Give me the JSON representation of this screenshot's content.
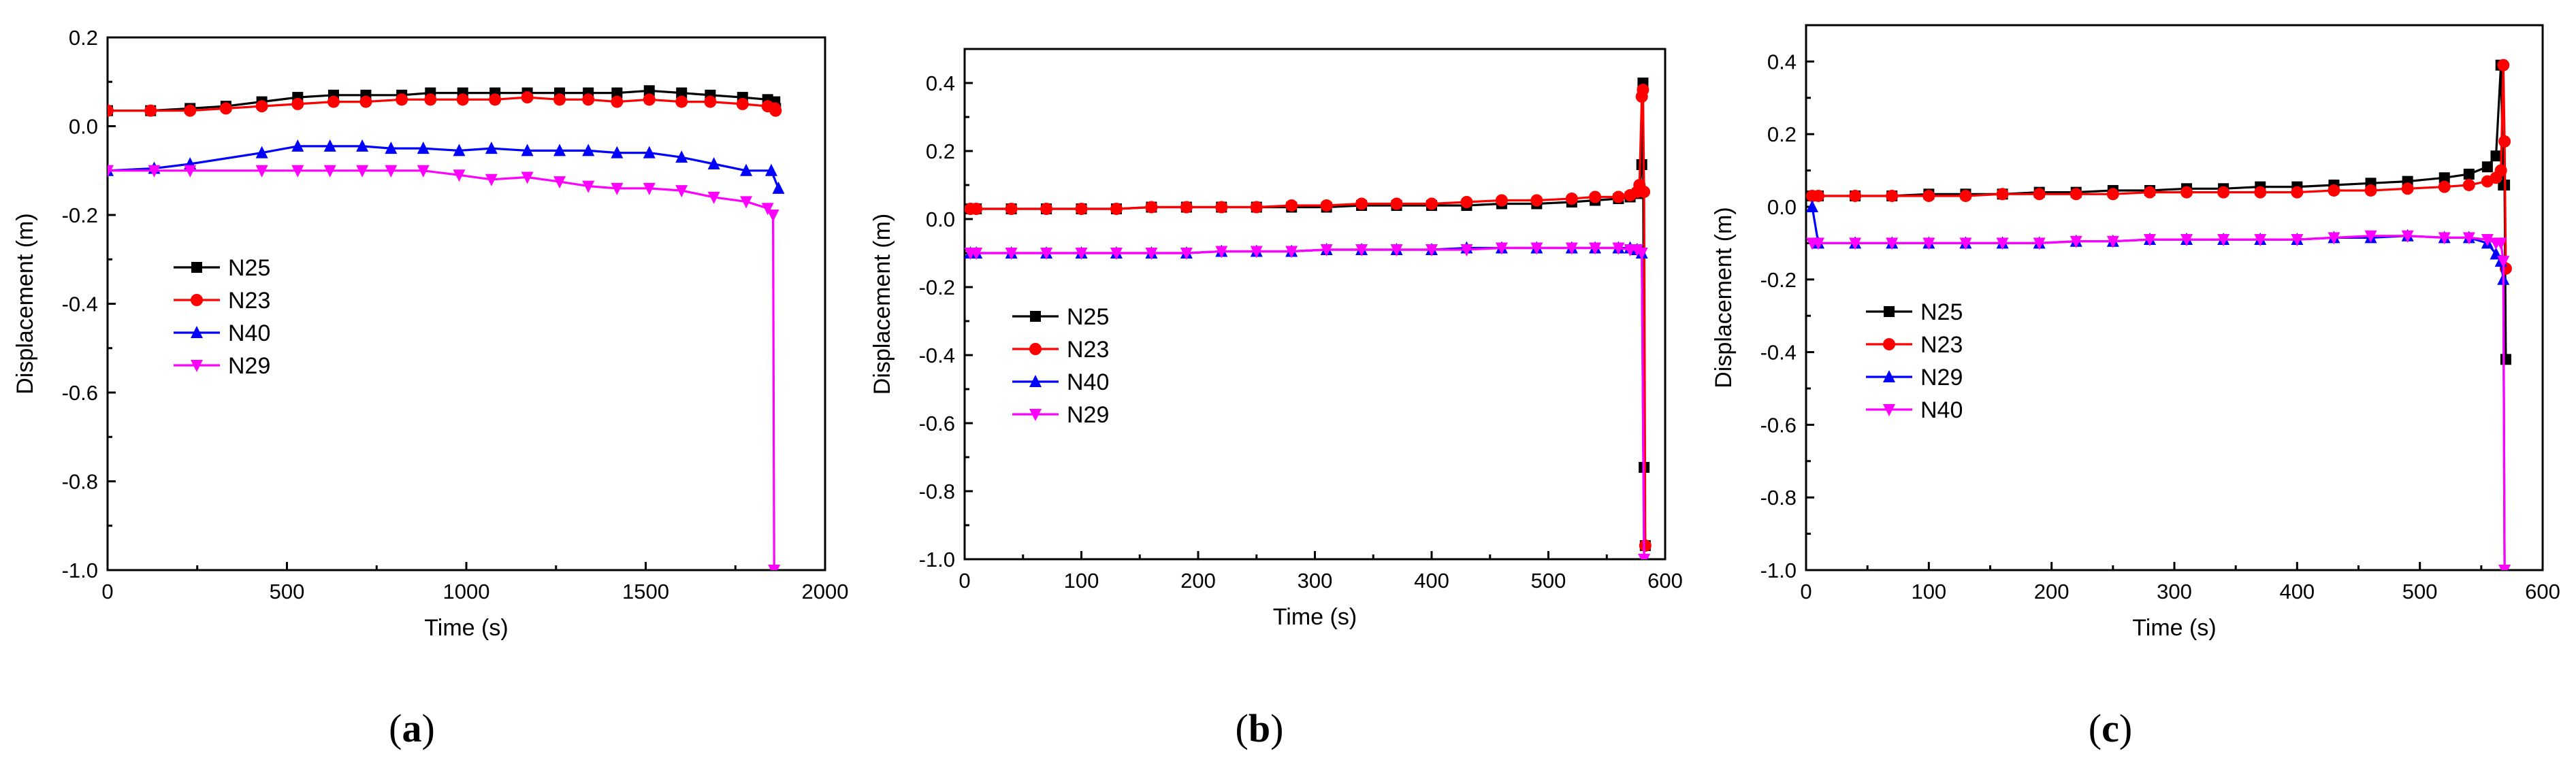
{
  "chart_data": [
    {
      "panel": "a",
      "type": "line",
      "panel_label": {
        "open": "(",
        "letter": "a",
        "close": ")"
      },
      "xlabel": "Time (s)",
      "ylabel": "Displacement (m)",
      "xlim": [
        0,
        2000
      ],
      "ylim": [
        -1.0,
        0.2
      ],
      "xticks": [
        0,
        500,
        1000,
        1500,
        2000
      ],
      "xtick_labels": [
        "0",
        "500",
        "1000",
        "1500",
        "2000"
      ],
      "yticks": [
        -1.0,
        -0.8,
        -0.6,
        -0.4,
        -0.2,
        0.0,
        0.2
      ],
      "ytick_labels": [
        "-1.0",
        "-0.8",
        "-0.6",
        "-0.4",
        "-0.2",
        "0.0",
        "0.2"
      ],
      "legend_position": "middle-left",
      "series": [
        {
          "name": "N25",
          "color": "#000000",
          "marker": "square",
          "x": [
            0,
            120,
            230,
            330,
            430,
            530,
            630,
            720,
            820,
            900,
            990,
            1080,
            1170,
            1260,
            1340,
            1420,
            1510,
            1600,
            1680,
            1770,
            1840,
            1860,
            1862
          ],
          "y": [
            0.035,
            0.035,
            0.04,
            0.045,
            0.055,
            0.065,
            0.07,
            0.07,
            0.07,
            0.075,
            0.075,
            0.075,
            0.075,
            0.075,
            0.075,
            0.075,
            0.08,
            0.075,
            0.07,
            0.065,
            0.06,
            0.055,
            0.04
          ]
        },
        {
          "name": "N23",
          "color": "#ff0000",
          "marker": "circle",
          "x": [
            0,
            120,
            230,
            330,
            430,
            530,
            630,
            720,
            820,
            900,
            990,
            1080,
            1170,
            1260,
            1340,
            1420,
            1510,
            1600,
            1680,
            1770,
            1840,
            1860,
            1862
          ],
          "y": [
            0.035,
            0.035,
            0.035,
            0.04,
            0.045,
            0.05,
            0.055,
            0.055,
            0.06,
            0.06,
            0.06,
            0.06,
            0.065,
            0.06,
            0.06,
            0.055,
            0.06,
            0.055,
            0.055,
            0.05,
            0.045,
            0.04,
            0.035
          ]
        },
        {
          "name": "N40",
          "color": "#0000ff",
          "marker": "triangle-up",
          "x": [
            0,
            130,
            230,
            430,
            530,
            620,
            710,
            790,
            880,
            980,
            1070,
            1170,
            1260,
            1340,
            1420,
            1510,
            1600,
            1690,
            1780,
            1850,
            1870
          ],
          "y": [
            -0.1,
            -0.095,
            -0.085,
            -0.06,
            -0.045,
            -0.045,
            -0.045,
            -0.05,
            -0.05,
            -0.055,
            -0.05,
            -0.055,
            -0.055,
            -0.055,
            -0.06,
            -0.06,
            -0.07,
            -0.085,
            -0.1,
            -0.1,
            -0.14
          ]
        },
        {
          "name": "N29",
          "color": "#ff00ff",
          "marker": "triangle-down",
          "x": [
            0,
            130,
            230,
            430,
            530,
            620,
            710,
            790,
            880,
            980,
            1070,
            1170,
            1260,
            1340,
            1420,
            1510,
            1600,
            1690,
            1780,
            1840,
            1855,
            1858
          ],
          "y": [
            -0.1,
            -0.1,
            -0.1,
            -0.1,
            -0.1,
            -0.1,
            -0.1,
            -0.1,
            -0.1,
            -0.11,
            -0.12,
            -0.115,
            -0.125,
            -0.135,
            -0.14,
            -0.14,
            -0.145,
            -0.16,
            -0.17,
            -0.185,
            -0.2,
            -1.0
          ]
        }
      ]
    },
    {
      "panel": "b",
      "type": "line",
      "panel_label": {
        "open": "(",
        "letter": "b",
        "close": ")"
      },
      "xlabel": "Time (s)",
      "ylabel": "Displacement (m)",
      "xlim": [
        0,
        600
      ],
      "ylim": [
        -1.0,
        0.5
      ],
      "xticks": [
        0,
        100,
        200,
        300,
        400,
        500,
        600
      ],
      "xtick_labels": [
        "0",
        "100",
        "200",
        "300",
        "400",
        "500",
        "600"
      ],
      "yticks": [
        -1.0,
        -0.8,
        -0.6,
        -0.4,
        -0.2,
        0.0,
        0.2,
        0.4
      ],
      "ytick_labels": [
        "-1.0",
        "-0.8",
        "-0.6",
        "-0.4",
        "-0.2",
        "0.0",
        "0.2",
        "0.4"
      ],
      "legend_position": "middle-left",
      "series": [
        {
          "name": "N25",
          "color": "#000000",
          "marker": "square",
          "x": [
            5,
            10,
            40,
            70,
            100,
            130,
            160,
            190,
            220,
            250,
            280,
            310,
            340,
            370,
            400,
            430,
            460,
            490,
            520,
            540,
            560,
            570,
            576,
            578,
            580,
            581,
            582,
            583
          ],
          "y": [
            0.03,
            0.03,
            0.03,
            0.03,
            0.03,
            0.03,
            0.035,
            0.035,
            0.035,
            0.035,
            0.035,
            0.035,
            0.04,
            0.04,
            0.04,
            0.04,
            0.045,
            0.045,
            0.05,
            0.055,
            0.06,
            0.065,
            0.075,
            0.08,
            0.16,
            0.4,
            -0.73,
            -0.96
          ]
        },
        {
          "name": "N23",
          "color": "#ff0000",
          "marker": "circle",
          "x": [
            5,
            10,
            40,
            70,
            100,
            130,
            160,
            190,
            220,
            250,
            280,
            310,
            340,
            370,
            400,
            430,
            460,
            490,
            520,
            540,
            560,
            570,
            576,
            578,
            580,
            581,
            582,
            583
          ],
          "y": [
            0.03,
            0.03,
            0.03,
            0.03,
            0.03,
            0.03,
            0.035,
            0.035,
            0.035,
            0.035,
            0.04,
            0.04,
            0.045,
            0.045,
            0.045,
            0.05,
            0.055,
            0.055,
            0.06,
            0.065,
            0.065,
            0.07,
            0.08,
            0.1,
            0.36,
            0.38,
            0.08,
            -0.96
          ]
        },
        {
          "name": "N40",
          "color": "#0000ff",
          "marker": "triangle-up",
          "x": [
            5,
            10,
            40,
            70,
            100,
            130,
            160,
            190,
            220,
            250,
            280,
            310,
            340,
            370,
            400,
            430,
            460,
            490,
            520,
            540,
            560,
            570,
            576,
            580,
            582
          ],
          "y": [
            -0.1,
            -0.1,
            -0.1,
            -0.1,
            -0.1,
            -0.1,
            -0.1,
            -0.1,
            -0.095,
            -0.095,
            -0.095,
            -0.09,
            -0.09,
            -0.09,
            -0.09,
            -0.085,
            -0.085,
            -0.085,
            -0.085,
            -0.085,
            -0.085,
            -0.085,
            -0.09,
            -0.1,
            -1.0
          ]
        },
        {
          "name": "N29",
          "color": "#ff00ff",
          "marker": "triangle-down",
          "x": [
            5,
            10,
            40,
            70,
            100,
            130,
            160,
            190,
            220,
            250,
            280,
            310,
            340,
            370,
            400,
            430,
            460,
            490,
            520,
            540,
            560,
            570,
            576,
            580,
            582
          ],
          "y": [
            -0.1,
            -0.1,
            -0.1,
            -0.1,
            -0.1,
            -0.1,
            -0.1,
            -0.1,
            -0.095,
            -0.095,
            -0.095,
            -0.09,
            -0.09,
            -0.09,
            -0.09,
            -0.09,
            -0.085,
            -0.085,
            -0.085,
            -0.085,
            -0.085,
            -0.09,
            -0.09,
            -0.1,
            -1.0
          ]
        }
      ]
    },
    {
      "panel": "c",
      "type": "line",
      "panel_label": {
        "open": "(",
        "letter": "c",
        "close": ")"
      },
      "xlabel": "Time (s)",
      "ylabel": "Displacement (m)",
      "xlim": [
        0,
        600
      ],
      "ylim": [
        -1.0,
        0.5
      ],
      "xticks": [
        0,
        100,
        200,
        300,
        400,
        500,
        600
      ],
      "xtick_labels": [
        "0",
        "100",
        "200",
        "300",
        "400",
        "500",
        "600"
      ],
      "yticks": [
        -1.0,
        -0.8,
        -0.6,
        -0.4,
        -0.2,
        0.0,
        0.2,
        0.4
      ],
      "ytick_labels": [
        "-1.0",
        "-0.8",
        "-0.6",
        "-0.4",
        "-0.2",
        "0.0",
        "0.2",
        "0.4"
      ],
      "legend_position": "middle-left",
      "series": [
        {
          "name": "N25",
          "color": "#000000",
          "marker": "square",
          "x": [
            5,
            10,
            40,
            70,
            100,
            130,
            160,
            190,
            220,
            250,
            280,
            310,
            340,
            370,
            400,
            430,
            460,
            490,
            520,
            540,
            555,
            562,
            566,
            568,
            569,
            570
          ],
          "y": [
            0.03,
            0.03,
            0.03,
            0.03,
            0.035,
            0.035,
            0.035,
            0.04,
            0.04,
            0.045,
            0.045,
            0.05,
            0.05,
            0.055,
            0.055,
            0.06,
            0.065,
            0.07,
            0.08,
            0.09,
            0.11,
            0.14,
            0.39,
            0.06,
            0.06,
            -0.42
          ]
        },
        {
          "name": "N23",
          "color": "#ff0000",
          "marker": "circle",
          "x": [
            5,
            10,
            40,
            70,
            100,
            130,
            160,
            190,
            220,
            250,
            280,
            310,
            340,
            370,
            400,
            430,
            460,
            490,
            520,
            540,
            555,
            562,
            566,
            568,
            569,
            570
          ],
          "y": [
            0.03,
            0.03,
            0.03,
            0.03,
            0.03,
            0.03,
            0.035,
            0.035,
            0.035,
            0.035,
            0.04,
            0.04,
            0.04,
            0.04,
            0.04,
            0.045,
            0.045,
            0.05,
            0.055,
            0.06,
            0.07,
            0.08,
            0.1,
            0.39,
            0.18,
            -0.17
          ]
        },
        {
          "name": "N29",
          "color": "#0000ff",
          "marker": "triangle-up",
          "x": [
            5,
            10,
            40,
            70,
            100,
            130,
            160,
            190,
            220,
            250,
            280,
            310,
            340,
            370,
            400,
            430,
            460,
            490,
            520,
            540,
            555,
            562,
            566,
            568,
            569
          ],
          "y": [
            0.0,
            -0.1,
            -0.1,
            -0.1,
            -0.1,
            -0.1,
            -0.1,
            -0.1,
            -0.095,
            -0.095,
            -0.09,
            -0.09,
            -0.09,
            -0.09,
            -0.09,
            -0.085,
            -0.085,
            -0.08,
            -0.085,
            -0.085,
            -0.1,
            -0.13,
            -0.15,
            -0.2,
            -1.0
          ]
        },
        {
          "name": "N40",
          "color": "#ff00ff",
          "marker": "triangle-down",
          "x": [
            5,
            10,
            40,
            70,
            100,
            130,
            160,
            190,
            220,
            250,
            280,
            310,
            340,
            370,
            400,
            430,
            460,
            490,
            520,
            540,
            555,
            562,
            566,
            568,
            569
          ],
          "y": [
            -0.1,
            -0.1,
            -0.1,
            -0.1,
            -0.1,
            -0.1,
            -0.1,
            -0.1,
            -0.095,
            -0.095,
            -0.09,
            -0.09,
            -0.09,
            -0.09,
            -0.09,
            -0.085,
            -0.08,
            -0.08,
            -0.085,
            -0.085,
            -0.09,
            -0.1,
            -0.1,
            -0.15,
            -1.0
          ]
        }
      ]
    }
  ]
}
